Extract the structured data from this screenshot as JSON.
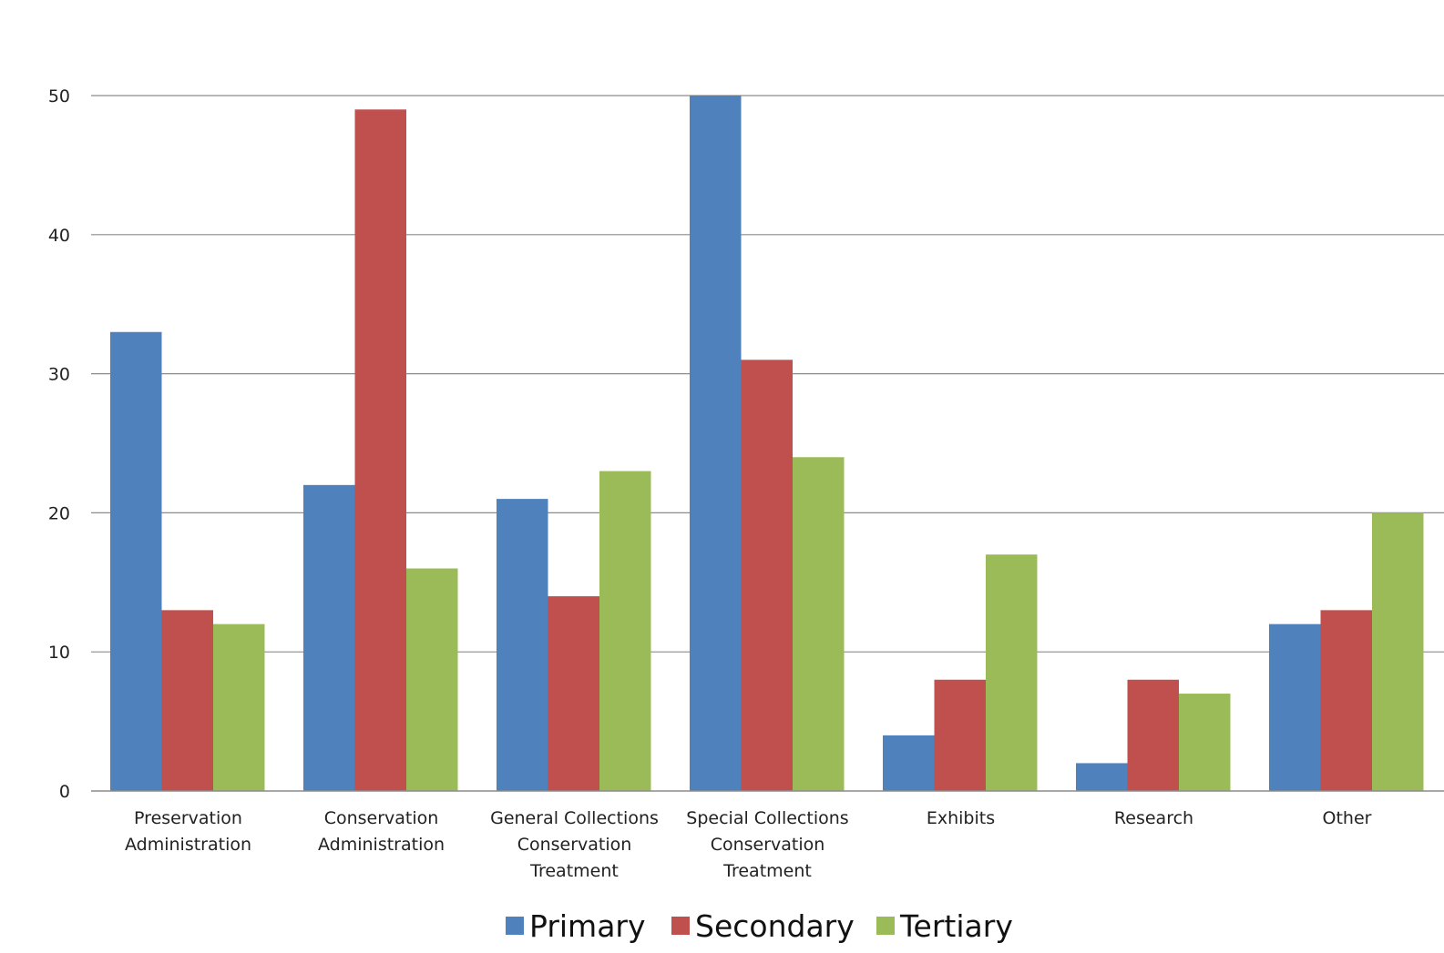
{
  "chart_data": {
    "type": "bar",
    "title": "",
    "xlabel": "",
    "ylabel": "",
    "categories": [
      [
        "Preservation",
        "Administration"
      ],
      [
        "Conservation",
        "Administration"
      ],
      [
        "General Collections",
        "Conservation",
        "Treatment"
      ],
      [
        "Special Collections",
        "Conservation",
        "Treatment"
      ],
      [
        "Exhibits"
      ],
      [
        "Research"
      ],
      [
        "Other"
      ]
    ],
    "series": [
      {
        "name": "Primary",
        "color": "#4f81bd",
        "values": [
          33,
          22,
          21,
          50,
          4,
          2,
          12
        ]
      },
      {
        "name": "Secondary",
        "color": "#c0504d",
        "values": [
          13,
          49,
          14,
          31,
          8,
          8,
          13
        ]
      },
      {
        "name": "Tertiary",
        "color": "#9bbb59",
        "values": [
          12,
          16,
          23,
          24,
          17,
          7,
          20
        ]
      }
    ],
    "ylim": [
      0,
      50
    ],
    "yticks": [
      "0",
      "10",
      "20",
      "30",
      "40",
      "50"
    ],
    "grid": true,
    "legend_position": "bottom"
  }
}
